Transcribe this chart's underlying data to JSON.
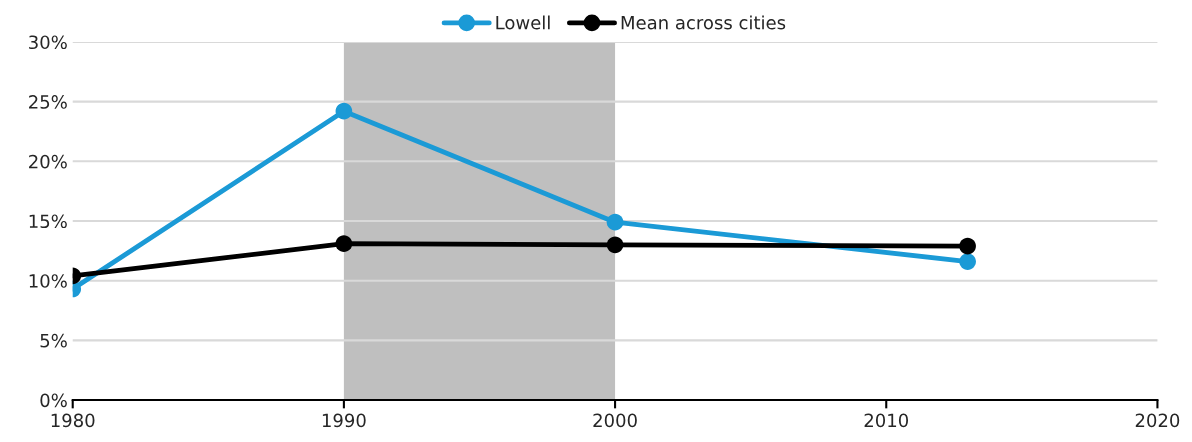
{
  "chart_data": {
    "type": "line",
    "x": [
      1980,
      1990,
      2000,
      2013
    ],
    "series": [
      {
        "name": "Lowell",
        "color": "#1b9ad6",
        "values": [
          9.3,
          24.2,
          14.9,
          11.6
        ]
      },
      {
        "name": "Mean across cities",
        "color": "#000000",
        "values": [
          10.4,
          13.1,
          13.0,
          12.9
        ]
      }
    ],
    "xlim": [
      1980,
      2020
    ],
    "xticks": [
      1980,
      1990,
      2000,
      2010,
      2020
    ],
    "ylim": [
      0,
      30
    ],
    "yticks": [
      {
        "value": 0,
        "label": "0%"
      },
      {
        "value": 5,
        "label": "5%"
      },
      {
        "value": 10,
        "label": "10%"
      },
      {
        "value": 15,
        "label": "15%"
      },
      {
        "value": 20,
        "label": "20%"
      },
      {
        "value": 25,
        "label": "25%"
      },
      {
        "value": 30,
        "label": "30%"
      }
    ],
    "bands": [
      {
        "axis": "x",
        "from": 1990,
        "to": 2000,
        "color": "#bfbfbf"
      }
    ],
    "grid": "y",
    "legend": "top",
    "marker": "circle",
    "line_style": "solid"
  }
}
